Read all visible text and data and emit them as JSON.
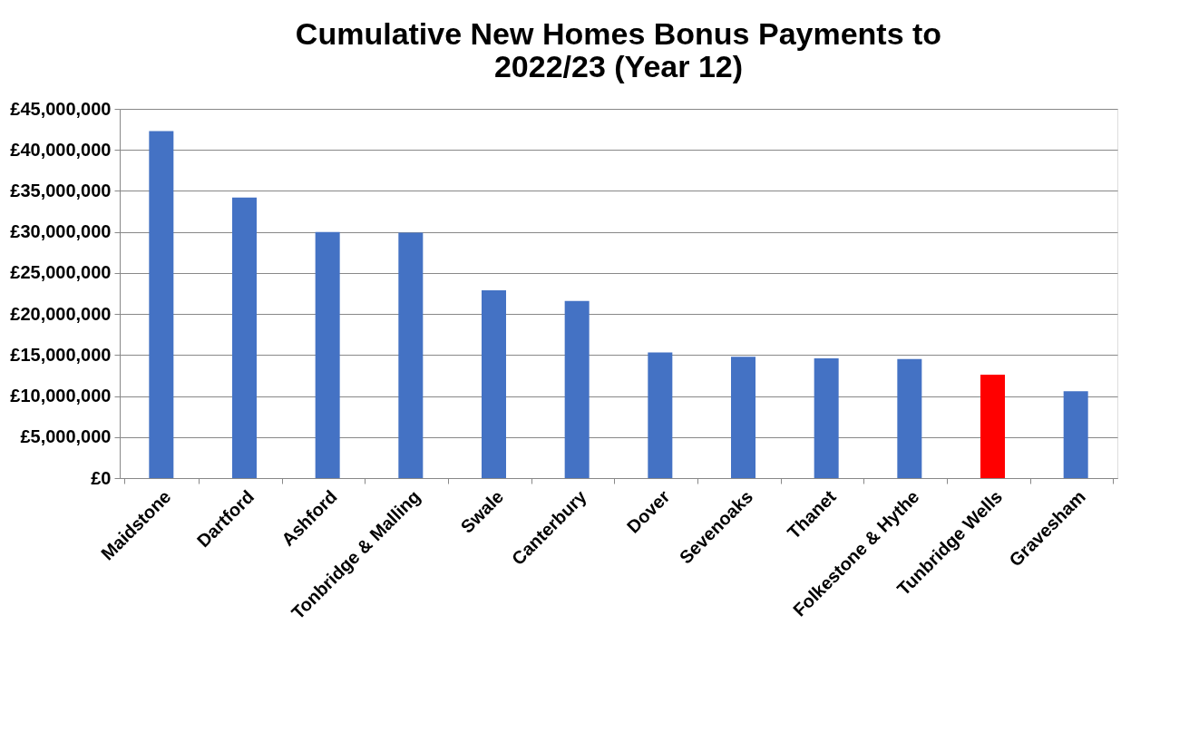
{
  "chart_data": {
    "type": "bar",
    "title": "Cumulative New Homes Bonus Payments to\n2022/23 (Year 12)",
    "categories": [
      "Maidstone",
      "Dartford",
      "Ashford",
      "Tonbridge & Malling",
      "Swale",
      "Canterbury",
      "Dover",
      "Sevenoaks",
      "Thanet",
      "Folkestone & Hythe",
      "Tunbridge Wells",
      "Gravesham"
    ],
    "values": [
      42300000,
      34200000,
      30000000,
      29900000,
      22900000,
      21600000,
      15300000,
      14800000,
      14600000,
      14500000,
      12600000,
      10600000
    ],
    "colors": [
      "#4472c4",
      "#4472c4",
      "#4472c4",
      "#4472c4",
      "#4472c4",
      "#4472c4",
      "#4472c4",
      "#4472c4",
      "#4472c4",
      "#4472c4",
      "#ff0000",
      "#4472c4"
    ],
    "ylim": [
      0,
      45000000
    ],
    "yticks": [
      {
        "value": 0,
        "label": "£0"
      },
      {
        "value": 5000000,
        "label": "£5,000,000"
      },
      {
        "value": 10000000,
        "label": "£10,000,000"
      },
      {
        "value": 15000000,
        "label": "£15,000,000"
      },
      {
        "value": 20000000,
        "label": "£20,000,000"
      },
      {
        "value": 25000000,
        "label": "£25,000,000"
      },
      {
        "value": 30000000,
        "label": "£30,000,000"
      },
      {
        "value": 35000000,
        "label": "£35,000,000"
      },
      {
        "value": 40000000,
        "label": "£40,000,000"
      },
      {
        "value": 45000000,
        "label": "£45,000,000"
      }
    ],
    "grid": "y",
    "legend": false
  }
}
